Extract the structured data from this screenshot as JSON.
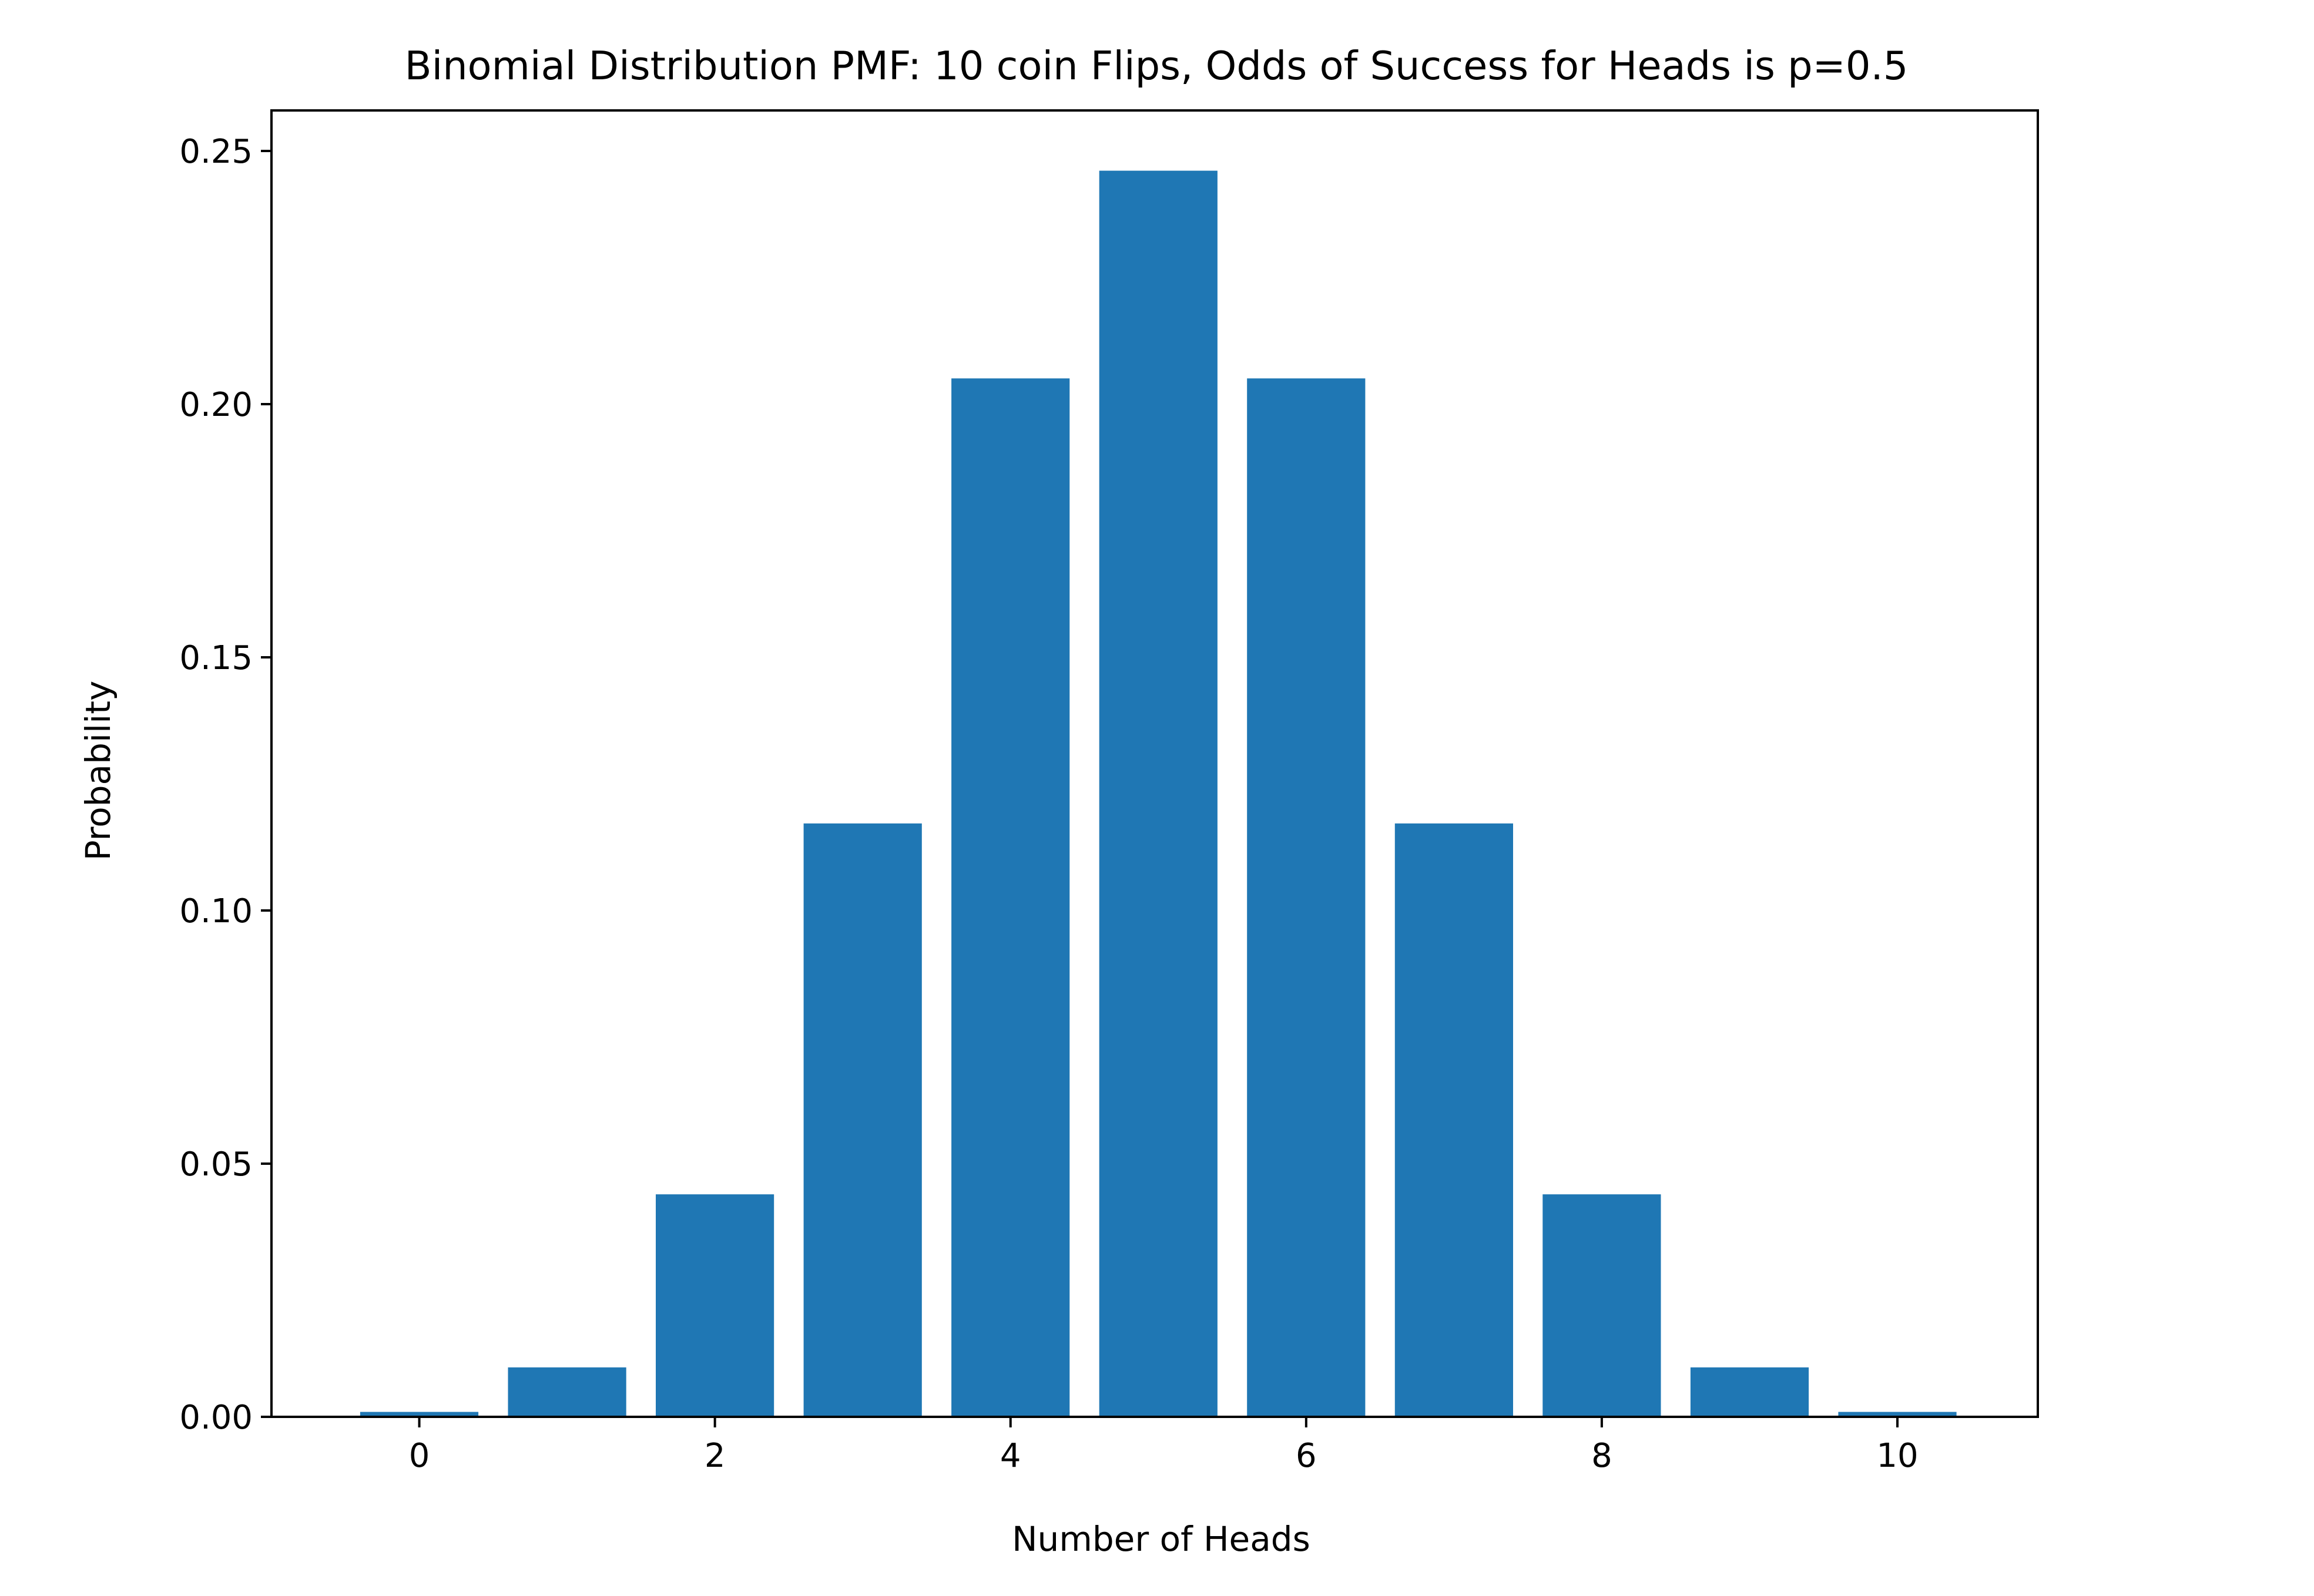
{
  "chart_data": {
    "type": "bar",
    "title": "Binomial Distribution PMF: 10 coin Flips, Odds of Success for Heads is p=0.5",
    "xlabel": "Number of Heads",
    "ylabel": "Probability",
    "categories": [
      0,
      1,
      2,
      3,
      4,
      5,
      6,
      7,
      8,
      9,
      10
    ],
    "values": [
      0.000977,
      0.009766,
      0.043945,
      0.117188,
      0.205078,
      0.246094,
      0.205078,
      0.117188,
      0.043945,
      0.009766,
      0.000977
    ],
    "xlim": [
      -1.0,
      10.95
    ],
    "ylim": [
      0,
      0.258
    ],
    "xticks": [
      0,
      2,
      4,
      6,
      8,
      10
    ],
    "xtick_labels": [
      "0",
      "2",
      "4",
      "6",
      "8",
      "10"
    ],
    "yticks": [
      0.0,
      0.05,
      0.1,
      0.15,
      0.2,
      0.25
    ],
    "ytick_labels": [
      "0.00",
      "0.05",
      "0.10",
      "0.15",
      "0.20",
      "0.25"
    ],
    "bar_width": 0.8,
    "bar_color": "#1f77b4",
    "grid": false,
    "legend": "none"
  }
}
